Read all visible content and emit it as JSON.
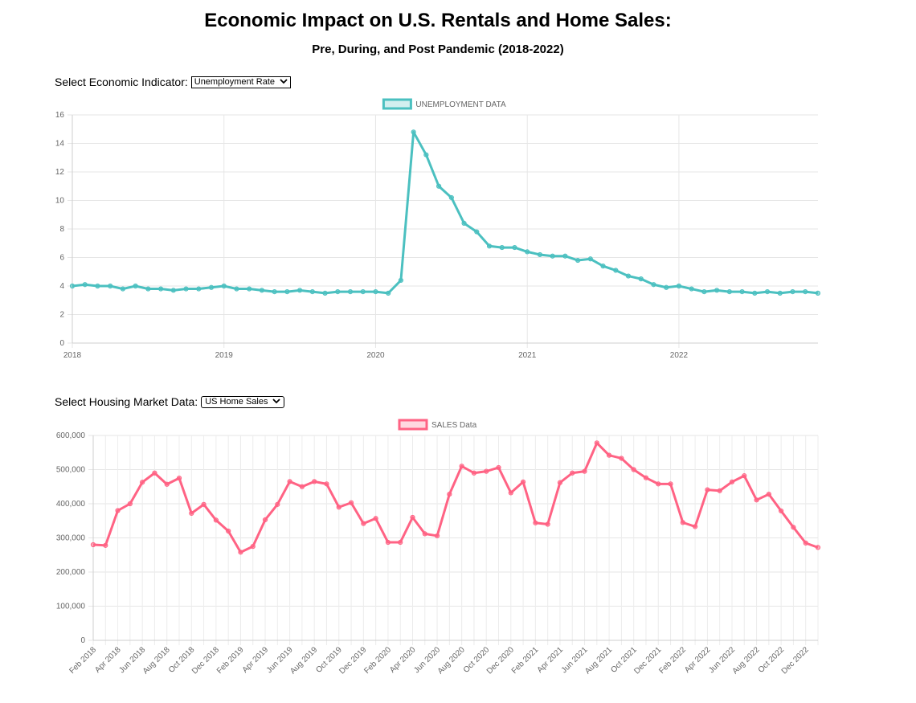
{
  "header": {
    "title": "Economic Impact on U.S. Rentals and Home Sales:",
    "subtitle": "Pre, During, and Post Pandemic (2018-2022)"
  },
  "controls": {
    "economic": {
      "label": "Select Economic Indicator:",
      "selected": "Unemployment Rate"
    },
    "housing": {
      "label": "Select Housing Market Data:",
      "selected": "US Home Sales"
    }
  },
  "colors": {
    "unemployment": "#4bc0c0",
    "sales": "#ff6384"
  },
  "chart_data": [
    {
      "type": "line",
      "legend": "UNEMPLOYMENT DATA",
      "legend_position": "top",
      "grid": true,
      "ylim": [
        0,
        16
      ],
      "yticks": [
        0,
        2,
        4,
        6,
        8,
        10,
        12,
        14,
        16
      ],
      "xlim": [
        2018,
        2022.917
      ],
      "xticks": [
        2018,
        2019,
        2020,
        2021,
        2022
      ],
      "x_labels": [
        "2018",
        "2019",
        "2020",
        "2021",
        "2022"
      ],
      "series": [
        {
          "name": "UNEMPLOYMENT DATA",
          "values": [
            4.0,
            4.1,
            4.0,
            4.0,
            3.8,
            4.0,
            3.8,
            3.8,
            3.7,
            3.8,
            3.8,
            3.9,
            4.0,
            3.8,
            3.8,
            3.7,
            3.6,
            3.6,
            3.7,
            3.6,
            3.5,
            3.6,
            3.6,
            3.6,
            3.6,
            3.5,
            4.4,
            14.8,
            13.2,
            11.0,
            10.2,
            8.4,
            7.8,
            6.8,
            6.7,
            6.7,
            6.4,
            6.2,
            6.1,
            6.1,
            5.8,
            5.9,
            5.4,
            5.1,
            4.7,
            4.5,
            4.1,
            3.9,
            4.0,
            3.8,
            3.6,
            3.7,
            3.6,
            3.6,
            3.5,
            3.6,
            3.5,
            3.6,
            3.6,
            3.5
          ]
        }
      ]
    },
    {
      "type": "line",
      "legend": "SALES Data",
      "legend_position": "top",
      "grid": true,
      "ylim": [
        0,
        600000
      ],
      "yticks": [
        0,
        100000,
        200000,
        300000,
        400000,
        500000,
        600000
      ],
      "ytick_labels": [
        "0",
        "100,000",
        "200,000",
        "300,000",
        "400,000",
        "500,000",
        "600,000"
      ],
      "categories": [
        "Feb 2018",
        "Mar 2018",
        "Apr 2018",
        "May 2018",
        "Jun 2018",
        "Jul 2018",
        "Aug 2018",
        "Sep 2018",
        "Oct 2018",
        "Nov 2018",
        "Dec 2018",
        "Jan 2019",
        "Feb 2019",
        "Mar 2019",
        "Apr 2019",
        "May 2019",
        "Jun 2019",
        "Jul 2019",
        "Aug 2019",
        "Sep 2019",
        "Oct 2019",
        "Nov 2019",
        "Dec 2019",
        "Jan 2020",
        "Feb 2020",
        "Mar 2020",
        "Apr 2020",
        "May 2020",
        "Jun 2020",
        "Jul 2020",
        "Aug 2020",
        "Sep 2020",
        "Oct 2020",
        "Nov 2020",
        "Dec 2020",
        "Jan 2021",
        "Feb 2021",
        "Mar 2021",
        "Apr 2021",
        "May 2021",
        "Jun 2021",
        "Jul 2021",
        "Aug 2021",
        "Sep 2021",
        "Oct 2021",
        "Nov 2021",
        "Dec 2021",
        "Jan 2022",
        "Feb 2022",
        "Mar 2022",
        "Apr 2022",
        "May 2022",
        "Jun 2022",
        "Jul 2022",
        "Aug 2022",
        "Sep 2022",
        "Oct 2022",
        "Nov 2022",
        "Dec 2022",
        "Jan 2023"
      ],
      "x_tick_labels": [
        "Feb 2018",
        "Apr 2018",
        "Jun 2018",
        "Aug 2018",
        "Oct 2018",
        "Dec 2018",
        "Feb 2019",
        "Apr 2019",
        "Jun 2019",
        "Aug 2019",
        "Oct 2019",
        "Dec 2019",
        "Feb 2020",
        "Apr 2020",
        "Jun 2020",
        "Aug 2020",
        "Oct 2020",
        "Dec 2020",
        "Feb 2021",
        "Apr 2021",
        "Jun 2021",
        "Aug 2021",
        "Oct 2021",
        "Dec 2021",
        "Feb 2022",
        "Apr 2022",
        "Jun 2022",
        "Aug 2022",
        "Oct 2022",
        "Dec 2022"
      ],
      "series": [
        {
          "name": "SALES Data",
          "values": [
            280000,
            278000,
            380000,
            400000,
            463000,
            490000,
            457000,
            475000,
            372000,
            398000,
            352000,
            320000,
            258000,
            275000,
            353000,
            398000,
            465000,
            450000,
            465000,
            458000,
            390000,
            403000,
            342000,
            357000,
            287000,
            287000,
            360000,
            312000,
            306000,
            428000,
            510000,
            490000,
            495000,
            506000,
            432000,
            464000,
            344000,
            340000,
            462000,
            490000,
            495000,
            578000,
            542000,
            533000,
            500000,
            476000,
            458000,
            458000,
            345000,
            333000,
            441000,
            438000,
            464000,
            482000,
            411000,
            428000,
            379000,
            331000,
            285000,
            272000
          ]
        }
      ]
    }
  ]
}
